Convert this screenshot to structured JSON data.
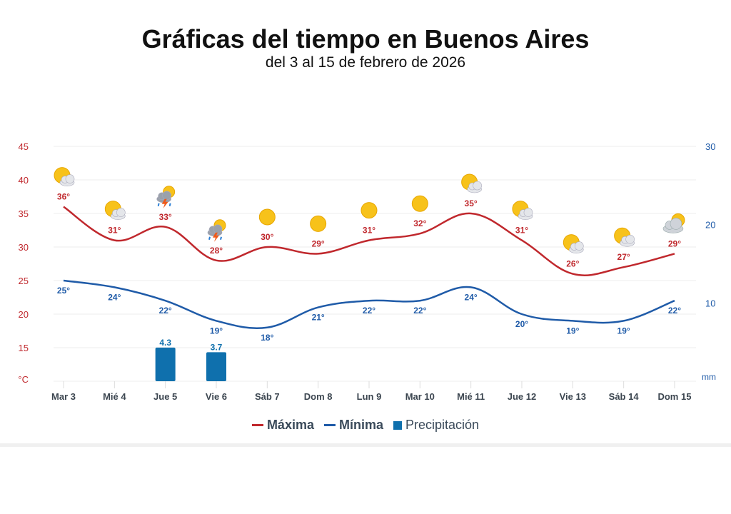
{
  "title": "Gráficas del tiempo en Buenos Aires",
  "subtitle": "del 3 al 15 de febrero de 2026",
  "chart_data": {
    "type": "line",
    "categories": [
      "Mar 3",
      "Mié 4",
      "Jue 5",
      "Vie 6",
      "Sáb 7",
      "Dom 8",
      "Lun 9",
      "Mar 10",
      "Mié 11",
      "Jue 12",
      "Vie 13",
      "Sáb 14",
      "Dom 15"
    ],
    "series": [
      {
        "name": "Máxima",
        "type": "line",
        "axis": "left",
        "color": "#c0282d",
        "values": [
          36,
          31,
          33,
          28,
          30,
          29,
          31,
          32,
          35,
          31,
          26,
          27,
          29
        ]
      },
      {
        "name": "Mínima",
        "type": "line",
        "axis": "left",
        "color": "#1f5ba8",
        "values": [
          25,
          24,
          22,
          19,
          18,
          21,
          22,
          22,
          24,
          20,
          19,
          19,
          22
        ]
      },
      {
        "name": "Precipitación",
        "type": "bar",
        "axis": "right",
        "color": "#0f70ad",
        "values": [
          null,
          null,
          4.3,
          3.7,
          null,
          null,
          null,
          null,
          null,
          null,
          null,
          null,
          null
        ]
      }
    ],
    "icons": [
      "partly-sunny-icon",
      "partly-sunny-icon",
      "thunderstorm-icon",
      "thunderstorm-icon",
      "sunny-icon",
      "sunny-icon",
      "sunny-icon",
      "sunny-icon",
      "partly-sunny-icon",
      "partly-sunny-icon",
      "partly-sunny-icon",
      "partly-sunny-icon",
      "mostly-cloudy-icon"
    ],
    "y_left": {
      "unit": "°C",
      "ticks": [
        15,
        20,
        25,
        30,
        35,
        40,
        45
      ],
      "range": [
        10,
        45
      ],
      "color": "#c0282d"
    },
    "y_right": {
      "unit": "mm",
      "ticks": [
        10,
        20,
        30
      ],
      "range": [
        0,
        30
      ],
      "color": "#1f5ba8"
    },
    "grid": true,
    "legend": "bottom"
  },
  "legend": {
    "max": "Máxima",
    "min": "Mínima",
    "precip": "Precipitación"
  }
}
